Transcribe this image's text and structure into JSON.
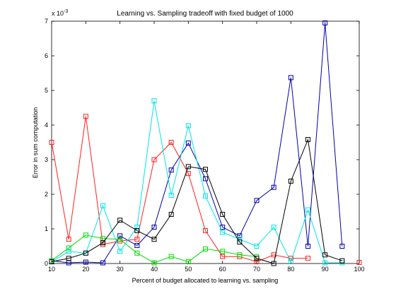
{
  "chart_data": {
    "type": "line",
    "title": "Learning vs. Sampling tradeoff with fixed budget of 1000",
    "xlabel": "Percent of budget allocated to learning vs. sampling",
    "ylabel": "Error in sum computation",
    "y_exponent_label": "x 10",
    "y_exponent_power": "-3",
    "xlim": [
      10,
      100
    ],
    "ylim": [
      0,
      7
    ],
    "xticks": [
      "10",
      "20",
      "30",
      "40",
      "50",
      "60",
      "70",
      "80",
      "90",
      "100"
    ],
    "yticks": [
      "0",
      "1",
      "2",
      "3",
      "4",
      "5",
      "6",
      "7"
    ],
    "grid": false,
    "marker": "square",
    "x": [
      10,
      15,
      20,
      25,
      30,
      35,
      40,
      45,
      50,
      55,
      60,
      65,
      70,
      75,
      80,
      85,
      90,
      95,
      100
    ],
    "series": [
      {
        "color": "#0000aa",
        "values": [
          0.08,
          0.02,
          0.04,
          0.02,
          0.8,
          0.52,
          1.05,
          2.7,
          3.48,
          2.45,
          1.05,
          0.8,
          1.82,
          2.2,
          5.37,
          0.5,
          6.95,
          0.5,
          null
        ]
      },
      {
        "color": "#ff2020",
        "values": [
          3.5,
          0.7,
          4.25,
          0.55,
          0.65,
          0.7,
          3.0,
          3.5,
          2.6,
          0.95,
          0.2,
          0.2,
          0.05,
          0.25,
          0.15,
          0.15,
          null,
          null,
          0.03
        ]
      },
      {
        "color": "#00dd00",
        "values": [
          0.08,
          0.45,
          0.82,
          0.72,
          0.7,
          0.3,
          0.02,
          0.2,
          0.05,
          0.42,
          0.35,
          0.25,
          0.2,
          null,
          null,
          null,
          null,
          null,
          null
        ]
      },
      {
        "color": "#00e5e5",
        "values": [
          0.05,
          0.35,
          0.3,
          1.67,
          0.35,
          1.05,
          4.7,
          1.97,
          3.98,
          1.95,
          0.9,
          0.7,
          0.5,
          1.05,
          0.05,
          1.55,
          0.02,
          0.02,
          null
        ]
      },
      {
        "color": "#000000",
        "values": [
          0.05,
          0.15,
          0.3,
          0.6,
          1.25,
          0.95,
          0.7,
          1.42,
          2.8,
          2.72,
          1.42,
          0.62,
          0.15,
          0.0,
          2.38,
          3.58,
          0.25,
          0.08,
          null
        ]
      }
    ]
  }
}
